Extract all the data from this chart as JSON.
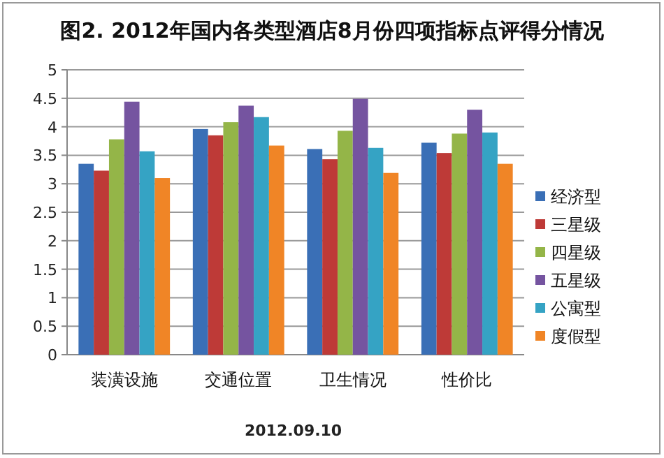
{
  "chart_data": {
    "type": "bar",
    "title": "图2. 2012年国内各类型酒店8月份四项指标点评得分情况",
    "categories": [
      "装潢设施",
      "交通位置",
      "卫生情况",
      "性价比"
    ],
    "series": [
      {
        "name": "经济型",
        "color": "#3a6fb6",
        "values": [
          3.35,
          3.96,
          3.61,
          3.72
        ]
      },
      {
        "name": "三星级",
        "color": "#be3a37",
        "values": [
          3.23,
          3.85,
          3.43,
          3.54
        ]
      },
      {
        "name": "四星级",
        "color": "#94b548",
        "values": [
          3.78,
          4.08,
          3.93,
          3.88
        ]
      },
      {
        "name": "五星级",
        "color": "#7554a0",
        "values": [
          4.44,
          4.37,
          4.49,
          4.3
        ]
      },
      {
        "name": "公寓型",
        "color": "#35a3c4",
        "values": [
          3.57,
          4.17,
          3.63,
          3.9
        ]
      },
      {
        "name": "度假型",
        "color": "#f08526",
        "values": [
          3.1,
          3.67,
          3.19,
          3.35
        ]
      }
    ],
    "ylim": [
      0,
      5
    ],
    "yticks": [
      0,
      0.5,
      1,
      1.5,
      2,
      2.5,
      3,
      3.5,
      4,
      4.5,
      5
    ],
    "grid": "y",
    "legend": "right",
    "annotations": [
      "2012.09.10"
    ]
  }
}
